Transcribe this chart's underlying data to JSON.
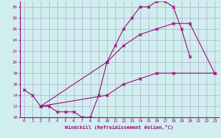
{
  "xlabel": "Windchill (Refroidissement éolien,°C)",
  "bg_color": "#d0eeee",
  "grid_color": "#aaaacc",
  "line_color": "#990077",
  "xlim": [
    -0.5,
    23.5
  ],
  "ylim": [
    10,
    31
  ],
  "yticks": [
    10,
    12,
    14,
    16,
    18,
    20,
    22,
    24,
    26,
    28,
    30
  ],
  "xticks": [
    0,
    1,
    2,
    3,
    4,
    5,
    6,
    7,
    8,
    9,
    10,
    11,
    12,
    13,
    14,
    15,
    16,
    17,
    18,
    19,
    20,
    21,
    22,
    23
  ],
  "curve1_x": [
    0,
    1,
    2,
    3,
    4,
    5,
    6,
    7,
    8,
    9,
    10,
    11,
    12,
    13,
    14,
    15,
    16,
    17,
    18,
    19,
    20
  ],
  "curve1_y": [
    15,
    14,
    12,
    12,
    11,
    11,
    11,
    10,
    10,
    14,
    20,
    23,
    26,
    28,
    30,
    30,
    31,
    31,
    30,
    26,
    21
  ],
  "curve2_x": [
    2,
    10,
    12,
    14,
    16,
    18,
    20,
    23
  ],
  "curve2_y": [
    12,
    20,
    23,
    25,
    26,
    27,
    27,
    18
  ],
  "curve3_x": [
    2,
    10,
    12,
    14,
    16,
    18,
    23
  ],
  "curve3_y": [
    12,
    14,
    16,
    17,
    18,
    18,
    18
  ],
  "tick_fontsize": 4.5,
  "xlabel_fontsize": 5.0
}
